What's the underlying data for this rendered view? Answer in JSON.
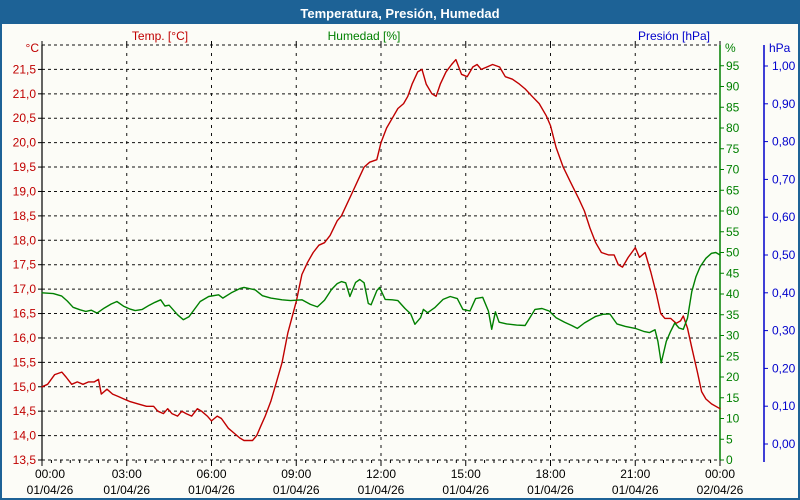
{
  "window": {
    "title": "Temperatura, Presión, Humedad"
  },
  "legend": [
    {
      "label": "Temp. [°C]",
      "color": "#c00000"
    },
    {
      "label": "Humedad [%]",
      "color": "#008000"
    },
    {
      "label": "Presión [hPa]",
      "color": "#0000cc"
    }
  ],
  "chart_data": {
    "type": "line",
    "title": "Temperatura, Presión, Humedad",
    "grid": true,
    "axes": {
      "temperature": {
        "unit": "°C",
        "color": "#c00000",
        "min": 13.5,
        "max": 22.0,
        "ticks": [
          {
            "v": 21.5,
            "label": "21,5"
          },
          {
            "v": 21.0,
            "label": "21,0"
          },
          {
            "v": 20.5,
            "label": "20,5"
          },
          {
            "v": 20.0,
            "label": "20,0"
          },
          {
            "v": 19.5,
            "label": "19,5"
          },
          {
            "v": 19.0,
            "label": "19,0"
          },
          {
            "v": 18.5,
            "label": "18,5"
          },
          {
            "v": 18.0,
            "label": "18,0"
          },
          {
            "v": 17.5,
            "label": "17,5"
          },
          {
            "v": 17.0,
            "label": "17,0"
          },
          {
            "v": 16.5,
            "label": "16,5"
          },
          {
            "v": 16.0,
            "label": "16,0"
          },
          {
            "v": 15.5,
            "label": "15,5"
          },
          {
            "v": 15.0,
            "label": "15,0"
          },
          {
            "v": 14.5,
            "label": "14,5"
          },
          {
            "v": 14.0,
            "label": "14,0"
          },
          {
            "v": 13.5,
            "label": "13,5"
          }
        ]
      },
      "humidity": {
        "unit": "%",
        "color": "#008000",
        "min": 0,
        "max": 100,
        "ticks": [
          {
            "v": 95,
            "label": "95"
          },
          {
            "v": 90,
            "label": "90"
          },
          {
            "v": 85,
            "label": "85"
          },
          {
            "v": 80,
            "label": "80"
          },
          {
            "v": 75,
            "label": "75"
          },
          {
            "v": 70,
            "label": "70"
          },
          {
            "v": 65,
            "label": "65"
          },
          {
            "v": 60,
            "label": "60"
          },
          {
            "v": 55,
            "label": "55"
          },
          {
            "v": 50,
            "label": "50"
          },
          {
            "v": 45,
            "label": "45"
          },
          {
            "v": 40,
            "label": "40"
          },
          {
            "v": 35,
            "label": "35"
          },
          {
            "v": 30,
            "label": "30"
          },
          {
            "v": 25,
            "label": "25"
          },
          {
            "v": 20,
            "label": "20"
          },
          {
            "v": 15,
            "label": "15"
          },
          {
            "v": 10,
            "label": "10"
          },
          {
            "v": 5,
            "label": "5"
          },
          {
            "v": 0,
            "label": "0"
          }
        ]
      },
      "pressure": {
        "unit": "hPa",
        "color": "#0000cc",
        "min": 0.0,
        "max": 1.0,
        "ticks": [
          {
            "v": 1.0,
            "label": "1,00"
          },
          {
            "v": 0.9,
            "label": "0,90"
          },
          {
            "v": 0.8,
            "label": "0,80"
          },
          {
            "v": 0.7,
            "label": "0,70"
          },
          {
            "v": 0.6,
            "label": "0,60"
          },
          {
            "v": 0.5,
            "label": "0,50"
          },
          {
            "v": 0.4,
            "label": "0,40"
          },
          {
            "v": 0.3,
            "label": "0,30"
          },
          {
            "v": 0.2,
            "label": "0,20"
          },
          {
            "v": 0.1,
            "label": "0,10"
          },
          {
            "v": 0.0,
            "label": "0,00"
          }
        ]
      }
    },
    "x_ticks": [
      {
        "h": 0,
        "time": "00:00",
        "date": "01/04/26"
      },
      {
        "h": 3,
        "time": "03:00",
        "date": "01/04/26"
      },
      {
        "h": 6,
        "time": "06:00",
        "date": "01/04/26"
      },
      {
        "h": 9,
        "time": "09:00",
        "date": "01/04/26"
      },
      {
        "h": 12,
        "time": "12:00",
        "date": "01/04/26"
      },
      {
        "h": 15,
        "time": "15:00",
        "date": "01/04/26"
      },
      {
        "h": 18,
        "time": "18:00",
        "date": "01/04/26"
      },
      {
        "h": 21,
        "time": "21:00",
        "date": "01/04/26"
      },
      {
        "h": 24,
        "time": "00:00",
        "date": "02/04/26"
      }
    ],
    "series": [
      {
        "name": "Temp. [°C]",
        "axis": "temperature",
        "color": "#c00000",
        "points": [
          [
            0,
            15.0
          ],
          [
            0.2,
            15.05
          ],
          [
            0.45,
            15.25
          ],
          [
            0.7,
            15.3
          ],
          [
            0.85,
            15.2
          ],
          [
            1.05,
            15.05
          ],
          [
            1.25,
            15.1
          ],
          [
            1.45,
            15.05
          ],
          [
            1.65,
            15.1
          ],
          [
            1.85,
            15.1
          ],
          [
            2.0,
            15.15
          ],
          [
            2.1,
            14.85
          ],
          [
            2.3,
            14.95
          ],
          [
            2.5,
            14.85
          ],
          [
            2.7,
            14.8
          ],
          [
            2.9,
            14.75
          ],
          [
            3.1,
            14.7
          ],
          [
            3.4,
            14.65
          ],
          [
            3.7,
            14.6
          ],
          [
            3.95,
            14.6
          ],
          [
            4.1,
            14.5
          ],
          [
            4.3,
            14.45
          ],
          [
            4.45,
            14.55
          ],
          [
            4.6,
            14.45
          ],
          [
            4.8,
            14.4
          ],
          [
            4.95,
            14.5
          ],
          [
            5.1,
            14.45
          ],
          [
            5.3,
            14.4
          ],
          [
            5.5,
            14.55
          ],
          [
            5.65,
            14.5
          ],
          [
            5.85,
            14.4
          ],
          [
            6.0,
            14.3
          ],
          [
            6.2,
            14.4
          ],
          [
            6.35,
            14.35
          ],
          [
            6.6,
            14.15
          ],
          [
            6.8,
            14.05
          ],
          [
            7.0,
            13.95
          ],
          [
            7.15,
            13.9
          ],
          [
            7.45,
            13.9
          ],
          [
            7.6,
            14.0
          ],
          [
            7.75,
            14.2
          ],
          [
            7.9,
            14.4
          ],
          [
            8.1,
            14.7
          ],
          [
            8.3,
            15.1
          ],
          [
            8.5,
            15.5
          ],
          [
            8.7,
            16.1
          ],
          [
            9.0,
            16.75
          ],
          [
            9.2,
            17.3
          ],
          [
            9.4,
            17.55
          ],
          [
            9.6,
            17.75
          ],
          [
            9.8,
            17.9
          ],
          [
            10.0,
            17.95
          ],
          [
            10.2,
            18.1
          ],
          [
            10.45,
            18.4
          ],
          [
            10.6,
            18.5
          ],
          [
            10.8,
            18.75
          ],
          [
            11.0,
            19.0
          ],
          [
            11.2,
            19.25
          ],
          [
            11.4,
            19.5
          ],
          [
            11.6,
            19.6
          ],
          [
            11.85,
            19.65
          ],
          [
            12.0,
            20.0
          ],
          [
            12.2,
            20.3
          ],
          [
            12.4,
            20.5
          ],
          [
            12.6,
            20.7
          ],
          [
            12.8,
            20.8
          ],
          [
            12.95,
            20.95
          ],
          [
            13.1,
            21.2
          ],
          [
            13.3,
            21.45
          ],
          [
            13.45,
            21.5
          ],
          [
            13.6,
            21.2
          ],
          [
            13.8,
            21.0
          ],
          [
            13.95,
            20.95
          ],
          [
            14.1,
            21.2
          ],
          [
            14.3,
            21.45
          ],
          [
            14.5,
            21.6
          ],
          [
            14.65,
            21.7
          ],
          [
            14.85,
            21.4
          ],
          [
            15.05,
            21.35
          ],
          [
            15.25,
            21.55
          ],
          [
            15.4,
            21.6
          ],
          [
            15.55,
            21.5
          ],
          [
            15.75,
            21.55
          ],
          [
            15.95,
            21.6
          ],
          [
            16.2,
            21.55
          ],
          [
            16.4,
            21.35
          ],
          [
            16.65,
            21.3
          ],
          [
            16.9,
            21.2
          ],
          [
            17.1,
            21.1
          ],
          [
            17.35,
            20.95
          ],
          [
            17.6,
            20.8
          ],
          [
            17.85,
            20.55
          ],
          [
            18.0,
            20.35
          ],
          [
            18.2,
            19.9
          ],
          [
            18.45,
            19.5
          ],
          [
            18.7,
            19.2
          ],
          [
            19.0,
            18.85
          ],
          [
            19.2,
            18.6
          ],
          [
            19.4,
            18.25
          ],
          [
            19.6,
            17.95
          ],
          [
            19.8,
            17.75
          ],
          [
            20.05,
            17.7
          ],
          [
            20.25,
            17.7
          ],
          [
            20.4,
            17.5
          ],
          [
            20.55,
            17.45
          ],
          [
            20.75,
            17.65
          ],
          [
            21.0,
            17.85
          ],
          [
            21.15,
            17.65
          ],
          [
            21.35,
            17.75
          ],
          [
            21.55,
            17.35
          ],
          [
            21.75,
            16.9
          ],
          [
            21.9,
            16.5
          ],
          [
            22.05,
            16.4
          ],
          [
            22.25,
            16.4
          ],
          [
            22.45,
            16.3
          ],
          [
            22.6,
            16.35
          ],
          [
            22.7,
            16.45
          ],
          [
            22.85,
            16.2
          ],
          [
            23.0,
            15.8
          ],
          [
            23.2,
            15.3
          ],
          [
            23.35,
            14.9
          ],
          [
            23.5,
            14.75
          ],
          [
            23.7,
            14.65
          ],
          [
            24.0,
            14.55
          ]
        ]
      },
      {
        "name": "Humedad [%]",
        "axis": "humidity",
        "color": "#008000",
        "points": [
          [
            0,
            40.3
          ],
          [
            0.4,
            40.1
          ],
          [
            0.7,
            39.5
          ],
          [
            0.9,
            38.3
          ],
          [
            1.1,
            36.8
          ],
          [
            1.35,
            36.2
          ],
          [
            1.55,
            35.8
          ],
          [
            1.75,
            36.1
          ],
          [
            1.95,
            35.4
          ],
          [
            2.2,
            36.6
          ],
          [
            2.45,
            37.6
          ],
          [
            2.65,
            38.2
          ],
          [
            2.9,
            37.0
          ],
          [
            3.1,
            36.4
          ],
          [
            3.3,
            36.0
          ],
          [
            3.55,
            36.3
          ],
          [
            3.8,
            37.3
          ],
          [
            4.0,
            38.0
          ],
          [
            4.2,
            38.6
          ],
          [
            4.35,
            37.1
          ],
          [
            4.5,
            37.3
          ],
          [
            4.8,
            35.0
          ],
          [
            5.0,
            33.8
          ],
          [
            5.2,
            34.5
          ],
          [
            5.6,
            38.2
          ],
          [
            5.9,
            39.4
          ],
          [
            6.25,
            39.8
          ],
          [
            6.4,
            39.0
          ],
          [
            6.7,
            40.3
          ],
          [
            7.0,
            41.3
          ],
          [
            7.15,
            41.6
          ],
          [
            7.55,
            41.0
          ],
          [
            7.8,
            39.6
          ],
          [
            8.1,
            39.0
          ],
          [
            8.5,
            38.6
          ],
          [
            8.8,
            38.4
          ],
          [
            9.2,
            38.6
          ],
          [
            9.5,
            37.5
          ],
          [
            9.75,
            36.9
          ],
          [
            10.0,
            38.5
          ],
          [
            10.25,
            41.1
          ],
          [
            10.45,
            42.5
          ],
          [
            10.6,
            43.0
          ],
          [
            10.75,
            42.7
          ],
          [
            10.9,
            39.4
          ],
          [
            11.1,
            42.8
          ],
          [
            11.25,
            43.5
          ],
          [
            11.4,
            42.7
          ],
          [
            11.55,
            37.7
          ],
          [
            11.65,
            37.4
          ],
          [
            11.85,
            40.8
          ],
          [
            11.95,
            41.6
          ],
          [
            12.15,
            38.7
          ],
          [
            12.4,
            38.6
          ],
          [
            12.6,
            38.4
          ],
          [
            12.85,
            36.5
          ],
          [
            13.05,
            35.2
          ],
          [
            13.2,
            32.7
          ],
          [
            13.4,
            34.3
          ],
          [
            13.5,
            36.3
          ],
          [
            13.65,
            35.5
          ],
          [
            13.9,
            36.7
          ],
          [
            14.2,
            38.7
          ],
          [
            14.45,
            39.4
          ],
          [
            14.7,
            38.9
          ],
          [
            14.9,
            36.3
          ],
          [
            15.15,
            35.9
          ],
          [
            15.35,
            38.9
          ],
          [
            15.6,
            39.2
          ],
          [
            15.8,
            35.9
          ],
          [
            15.92,
            31.5
          ],
          [
            16.05,
            35.7
          ],
          [
            16.18,
            33.2
          ],
          [
            16.45,
            32.8
          ],
          [
            16.8,
            32.5
          ],
          [
            17.1,
            32.4
          ],
          [
            17.45,
            36.3
          ],
          [
            17.7,
            36.5
          ],
          [
            17.95,
            35.9
          ],
          [
            18.2,
            34.3
          ],
          [
            18.5,
            33.2
          ],
          [
            18.75,
            32.4
          ],
          [
            18.95,
            31.7
          ],
          [
            19.2,
            33.0
          ],
          [
            19.6,
            34.6
          ],
          [
            19.85,
            35.1
          ],
          [
            20.1,
            35.2
          ],
          [
            20.35,
            32.8
          ],
          [
            20.65,
            32.2
          ],
          [
            21.0,
            31.7
          ],
          [
            21.3,
            31.0
          ],
          [
            21.5,
            30.7
          ],
          [
            21.7,
            31.4
          ],
          [
            21.8,
            28.6
          ],
          [
            21.92,
            23.4
          ],
          [
            22.1,
            28.6
          ],
          [
            22.25,
            31.0
          ],
          [
            22.4,
            33.0
          ],
          [
            22.55,
            31.8
          ],
          [
            22.7,
            31.5
          ],
          [
            22.85,
            34.2
          ],
          [
            23.0,
            40.6
          ],
          [
            23.15,
            44.2
          ],
          [
            23.3,
            46.6
          ],
          [
            23.5,
            48.6
          ],
          [
            23.7,
            49.8
          ],
          [
            23.85,
            50.0
          ],
          [
            24.0,
            49.4
          ]
        ]
      },
      {
        "name": "Presión [hPa]",
        "axis": "pressure",
        "color": "#0000cc",
        "points": []
      }
    ]
  }
}
